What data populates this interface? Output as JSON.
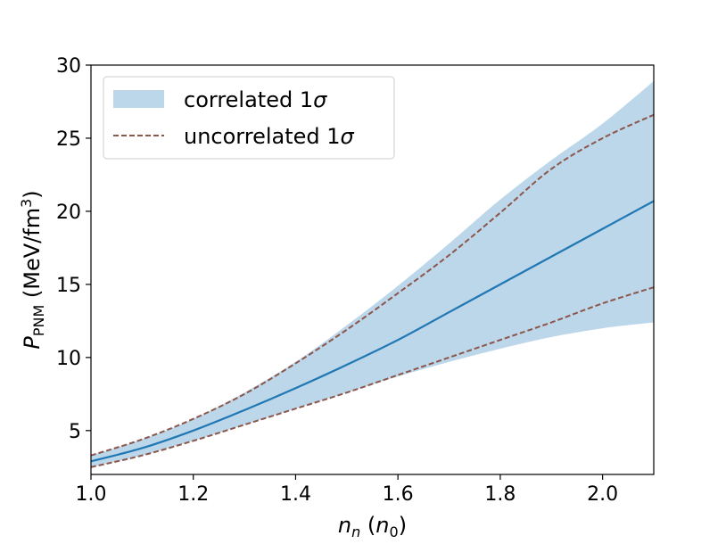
{
  "chart_data": {
    "type": "line",
    "xlabel": {
      "main": "n",
      "main_sub": "n",
      "unit_open": " (",
      "unit": "n",
      "unit_sub": "0",
      "unit_close": ")"
    },
    "ylabel": {
      "main": "P",
      "main_sub": "PNM",
      "unit": " (MeV/fm",
      "unit_sup": "3",
      "unit_close": ")"
    },
    "xlim": [
      1.0,
      2.1
    ],
    "ylim": [
      2.0,
      30.0
    ],
    "xticks": [
      "1.0",
      "1.2",
      "1.4",
      "1.6",
      "1.8",
      "2.0"
    ],
    "xtick_values": [
      1.0,
      1.2,
      1.4,
      1.6,
      1.8,
      2.0
    ],
    "yticks": [
      "5",
      "10",
      "15",
      "20",
      "25",
      "30"
    ],
    "ytick_values": [
      5,
      10,
      15,
      20,
      25,
      30
    ],
    "grid": false,
    "legend_position": "top-left",
    "colors": {
      "band": "#bcd6ea",
      "mean": "#1f77b4",
      "dashed": "#8c564b"
    },
    "x": [
      1.0,
      1.1,
      1.2,
      1.3,
      1.4,
      1.5,
      1.6,
      1.7,
      1.8,
      1.9,
      2.0,
      2.1
    ],
    "series": [
      {
        "role": "mean",
        "values": [
          2.9,
          3.8,
          5.0,
          6.4,
          7.9,
          9.5,
          11.2,
          13.1,
          15.0,
          16.9,
          18.8,
          20.7
        ]
      },
      {
        "role": "band",
        "name": "correlated 1σ",
        "label_text": "correlated 1",
        "label_symbol": "σ",
        "lower": [
          2.5,
          3.3,
          4.3,
          5.4,
          6.5,
          7.6,
          8.7,
          9.7,
          10.6,
          11.4,
          12.0,
          12.4
        ],
        "upper": [
          3.3,
          4.4,
          5.8,
          7.6,
          9.7,
          12.2,
          14.9,
          17.8,
          20.8,
          23.5,
          26.0,
          28.9
        ]
      },
      {
        "role": "dashed_upper",
        "name": "uncorrelated 1σ",
        "label_text": "uncorrelated 1",
        "label_symbol": "σ",
        "values": [
          3.3,
          4.4,
          5.8,
          7.5,
          9.6,
          11.9,
          14.4,
          17.0,
          19.9,
          22.9,
          25.0,
          26.6
        ]
      },
      {
        "role": "dashed_lower",
        "values": [
          2.5,
          3.3,
          4.3,
          5.4,
          6.5,
          7.6,
          8.8,
          10.0,
          11.2,
          12.4,
          13.7,
          14.8
        ]
      }
    ]
  }
}
